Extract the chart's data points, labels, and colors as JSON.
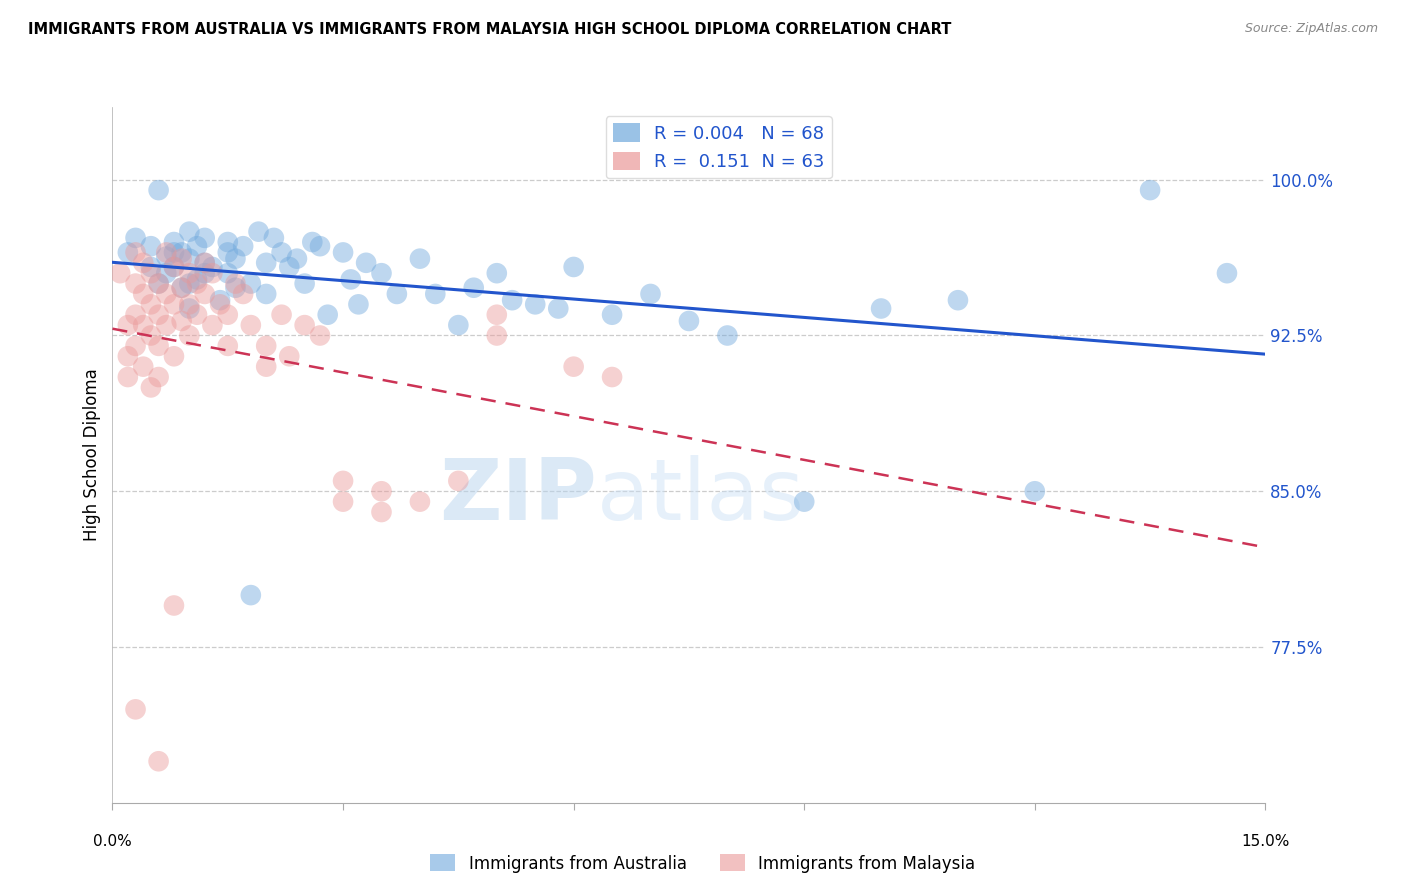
{
  "title": "IMMIGRANTS FROM AUSTRALIA VS IMMIGRANTS FROM MALAYSIA HIGH SCHOOL DIPLOMA CORRELATION CHART",
  "source": "Source: ZipAtlas.com",
  "ylabel": "High School Diploma",
  "y_ticks": [
    77.5,
    85.0,
    92.5,
    100.0
  ],
  "y_tick_labels": [
    "77.5%",
    "85.0%",
    "92.5%",
    "100.0%"
  ],
  "x_range": [
    0.0,
    15.0
  ],
  "y_range": [
    70.0,
    103.5
  ],
  "legend_R_australia": "R = 0.004",
  "legend_N_australia": "N = 68",
  "legend_R_malaysia": "R =  0.151",
  "legend_N_malaysia": "N = 63",
  "australia_color": "#6fa8dc",
  "malaysia_color": "#ea9999",
  "australia_line_color": "#2255cc",
  "malaysia_line_color": "#cc3355",
  "watermark_text": "ZIPatlas",
  "australia_points": [
    [
      0.2,
      96.5
    ],
    [
      0.3,
      97.2
    ],
    [
      0.5,
      95.8
    ],
    [
      0.5,
      96.8
    ],
    [
      0.6,
      99.5
    ],
    [
      0.6,
      95.0
    ],
    [
      0.7,
      96.3
    ],
    [
      0.7,
      95.5
    ],
    [
      0.8,
      97.0
    ],
    [
      0.8,
      96.5
    ],
    [
      0.8,
      95.8
    ],
    [
      0.9,
      96.5
    ],
    [
      0.9,
      94.8
    ],
    [
      1.0,
      97.5
    ],
    [
      1.0,
      96.2
    ],
    [
      1.0,
      95.0
    ],
    [
      1.0,
      93.8
    ],
    [
      1.1,
      96.8
    ],
    [
      1.1,
      95.2
    ],
    [
      1.2,
      97.2
    ],
    [
      1.2,
      96.0
    ],
    [
      1.2,
      95.5
    ],
    [
      1.3,
      95.8
    ],
    [
      1.4,
      94.2
    ],
    [
      1.5,
      96.5
    ],
    [
      1.5,
      97.0
    ],
    [
      1.5,
      95.5
    ],
    [
      1.6,
      96.2
    ],
    [
      1.6,
      94.8
    ],
    [
      1.7,
      96.8
    ],
    [
      1.8,
      95.0
    ],
    [
      1.9,
      97.5
    ],
    [
      2.0,
      96.0
    ],
    [
      2.0,
      94.5
    ],
    [
      2.1,
      97.2
    ],
    [
      2.2,
      96.5
    ],
    [
      2.3,
      95.8
    ],
    [
      2.4,
      96.2
    ],
    [
      2.5,
      95.0
    ],
    [
      2.6,
      97.0
    ],
    [
      2.7,
      96.8
    ],
    [
      2.8,
      93.5
    ],
    [
      3.0,
      96.5
    ],
    [
      3.1,
      95.2
    ],
    [
      3.2,
      94.0
    ],
    [
      3.3,
      96.0
    ],
    [
      3.5,
      95.5
    ],
    [
      3.7,
      94.5
    ],
    [
      4.0,
      96.2
    ],
    [
      4.2,
      94.5
    ],
    [
      4.5,
      93.0
    ],
    [
      4.7,
      94.8
    ],
    [
      5.0,
      95.5
    ],
    [
      5.2,
      94.2
    ],
    [
      5.5,
      94.0
    ],
    [
      5.8,
      93.8
    ],
    [
      6.0,
      95.8
    ],
    [
      6.5,
      93.5
    ],
    [
      7.0,
      94.5
    ],
    [
      7.5,
      93.2
    ],
    [
      8.0,
      92.5
    ],
    [
      9.0,
      84.5
    ],
    [
      10.0,
      93.8
    ],
    [
      11.0,
      94.2
    ],
    [
      12.0,
      85.0
    ],
    [
      13.5,
      99.5
    ],
    [
      14.5,
      95.5
    ],
    [
      1.8,
      80.0
    ]
  ],
  "malaysia_points": [
    [
      0.1,
      95.5
    ],
    [
      0.2,
      93.0
    ],
    [
      0.2,
      91.5
    ],
    [
      0.2,
      90.5
    ],
    [
      0.3,
      96.5
    ],
    [
      0.3,
      95.0
    ],
    [
      0.3,
      93.5
    ],
    [
      0.3,
      92.0
    ],
    [
      0.4,
      96.0
    ],
    [
      0.4,
      94.5
    ],
    [
      0.4,
      93.0
    ],
    [
      0.4,
      91.0
    ],
    [
      0.5,
      95.5
    ],
    [
      0.5,
      94.0
    ],
    [
      0.5,
      92.5
    ],
    [
      0.5,
      90.0
    ],
    [
      0.6,
      95.0
    ],
    [
      0.6,
      93.5
    ],
    [
      0.6,
      92.0
    ],
    [
      0.6,
      90.5
    ],
    [
      0.7,
      96.5
    ],
    [
      0.7,
      94.5
    ],
    [
      0.7,
      93.0
    ],
    [
      0.8,
      95.8
    ],
    [
      0.8,
      94.0
    ],
    [
      0.8,
      91.5
    ],
    [
      0.9,
      96.2
    ],
    [
      0.9,
      94.8
    ],
    [
      0.9,
      93.2
    ],
    [
      1.0,
      95.5
    ],
    [
      1.0,
      94.0
    ],
    [
      1.0,
      92.5
    ],
    [
      1.1,
      95.0
    ],
    [
      1.1,
      93.5
    ],
    [
      1.2,
      96.0
    ],
    [
      1.2,
      94.5
    ],
    [
      1.3,
      95.5
    ],
    [
      1.3,
      93.0
    ],
    [
      1.4,
      94.0
    ],
    [
      1.5,
      93.5
    ],
    [
      1.5,
      92.0
    ],
    [
      1.6,
      95.0
    ],
    [
      1.7,
      94.5
    ],
    [
      1.8,
      93.0
    ],
    [
      2.0,
      92.0
    ],
    [
      2.0,
      91.0
    ],
    [
      2.2,
      93.5
    ],
    [
      2.3,
      91.5
    ],
    [
      2.5,
      93.0
    ],
    [
      2.7,
      92.5
    ],
    [
      3.0,
      85.5
    ],
    [
      3.0,
      84.5
    ],
    [
      3.5,
      85.0
    ],
    [
      3.5,
      84.0
    ],
    [
      4.0,
      84.5
    ],
    [
      4.5,
      85.5
    ],
    [
      5.0,
      93.5
    ],
    [
      5.0,
      92.5
    ],
    [
      6.0,
      91.0
    ],
    [
      6.5,
      90.5
    ],
    [
      0.3,
      74.5
    ],
    [
      0.8,
      79.5
    ],
    [
      0.6,
      72.0
    ]
  ]
}
